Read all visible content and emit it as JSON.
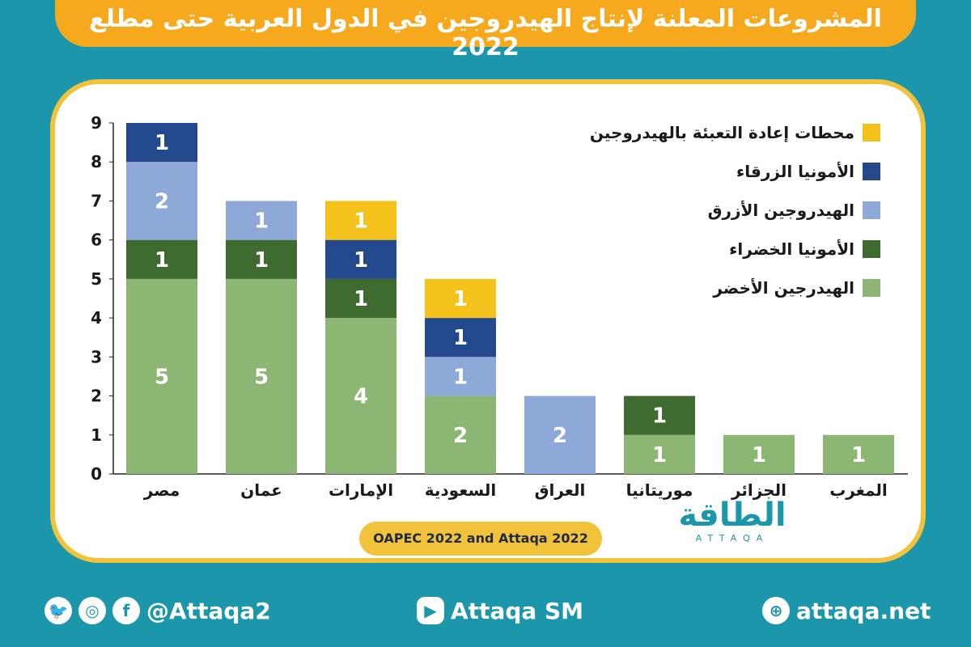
{
  "title": "المشروعات المعلنة لإنتاج الهيدروجين في الدول العربية حتى مطلع 2022",
  "source": "OAPEC 2022 and Attaqa 2022",
  "logo": {
    "arabic": "الطاقة",
    "english": "ATTAQA"
  },
  "footer": {
    "social_handle": "@Attaqa2",
    "youtube": "Attaqa SM",
    "website": "attaqa.net"
  },
  "chart_data": {
    "type": "bar",
    "stacked": true,
    "categories": [
      "مصر",
      "عمان",
      "الإمارات",
      "السعودية",
      "العراق",
      "موريتانيا",
      "الجزائر",
      "المغرب"
    ],
    "series": [
      {
        "name": "الهيدرجين الأخضر",
        "color": "#8db574",
        "values": [
          5,
          5,
          4,
          2,
          0,
          1,
          1,
          1
        ]
      },
      {
        "name": "الأمونيا الخضراء",
        "color": "#3f6a30",
        "values": [
          1,
          1,
          1,
          0,
          0,
          1,
          0,
          0
        ]
      },
      {
        "name": "الهيدروجين الأزرق",
        "color": "#8ea8d8",
        "values": [
          2,
          1,
          0,
          1,
          2,
          0,
          0,
          0
        ]
      },
      {
        "name": "الأمونيا الزرقاء",
        "color": "#23488b",
        "values": [
          1,
          0,
          1,
          1,
          0,
          0,
          0,
          0
        ]
      },
      {
        "name": "محطات إعادة التعبئة بالهيدروجين",
        "color": "#f5c21b",
        "values": [
          0,
          0,
          1,
          1,
          0,
          0,
          0,
          0
        ]
      }
    ],
    "yticks": [
      0,
      1,
      2,
      3,
      4,
      5,
      6,
      7,
      8,
      9
    ],
    "ylim": [
      0,
      9
    ],
    "grid": false,
    "legend": "top-right"
  }
}
